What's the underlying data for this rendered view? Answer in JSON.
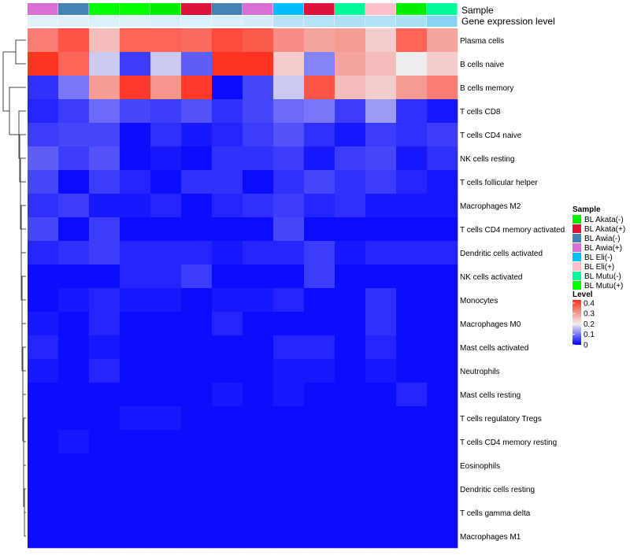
{
  "chart_data": {
    "type": "heatmap",
    "annotation_row_labels": [
      "Sample",
      "Gene expression level"
    ],
    "columns": [
      {
        "sample": "BL Awia(+)",
        "expr": 0.08
      },
      {
        "sample": "BL Awia(-)",
        "expr": 0.1
      },
      {
        "sample": "BL Mutu(+)",
        "expr": 0.12
      },
      {
        "sample": "BL Mutu(+)",
        "expr": 0.1
      },
      {
        "sample": "BL Akata(-)",
        "expr": 0.14
      },
      {
        "sample": "BL Akata(+)",
        "expr": 0.12
      },
      {
        "sample": "BL Awia(-)",
        "expr": 0.14
      },
      {
        "sample": "BL Awia(+)",
        "expr": 0.16
      },
      {
        "sample": "BL Eli(-)",
        "expr": 0.4
      },
      {
        "sample": "BL Akata(+)",
        "expr": 0.42
      },
      {
        "sample": "BL Mutu(-)",
        "expr": 0.48
      },
      {
        "sample": "BL Eli(+)",
        "expr": 0.44
      },
      {
        "sample": "BL Akata(-)",
        "expr": 0.52
      },
      {
        "sample": "BL Mutu(-)",
        "expr": 0.8
      }
    ],
    "rows": [
      "Plasma cells",
      "B cells naive",
      "B cells memory",
      "T cells CD8",
      "T cells CD4 naive",
      "NK cells resting",
      "T cells follicular helper",
      "Macrophages M2",
      "T cells CD4 memory activated",
      "Dendritic cells activated",
      "NK cells activated",
      "Monocytes",
      "Macrophages M0",
      "Mast cells activated",
      "Neutrophils",
      "Mast cells resting",
      "T cells regulatory  Tregs",
      "T cells CD4 memory resting",
      "Eosinophils",
      "Dendritic cells resting",
      "T cells gamma delta",
      "Macrophages M1"
    ],
    "values": [
      [
        0.34,
        0.39,
        0.26,
        0.37,
        0.37,
        0.36,
        0.4,
        0.38,
        0.32,
        0.29,
        0.3,
        0.24,
        0.37,
        0.29
      ],
      [
        0.43,
        0.37,
        0.17,
        0.05,
        0.17,
        0.08,
        0.43,
        0.43,
        0.24,
        0.11,
        0.29,
        0.26,
        0.2,
        0.24
      ],
      [
        0.04,
        0.1,
        0.3,
        0.42,
        0.31,
        0.42,
        0.01,
        0.06,
        0.17,
        0.39,
        0.26,
        0.24,
        0.3,
        0.34
      ],
      [
        0.03,
        0.05,
        0.09,
        0.06,
        0.05,
        0.07,
        0.04,
        0.06,
        0.09,
        0.1,
        0.05,
        0.13,
        0.04,
        0.02
      ],
      [
        0.05,
        0.06,
        0.06,
        0.01,
        0.04,
        0.02,
        0.03,
        0.05,
        0.07,
        0.04,
        0.02,
        0.05,
        0.04,
        0.05
      ],
      [
        0.08,
        0.05,
        0.07,
        0.01,
        0.02,
        0.01,
        0.04,
        0.04,
        0.05,
        0.02,
        0.05,
        0.06,
        0.02,
        0.04
      ],
      [
        0.06,
        0.01,
        0.05,
        0.03,
        0.01,
        0.04,
        0.04,
        0.01,
        0.04,
        0.06,
        0.04,
        0.05,
        0.03,
        0.02
      ],
      [
        0.04,
        0.05,
        0.02,
        0.02,
        0.03,
        0.01,
        0.03,
        0.04,
        0.05,
        0.03,
        0.04,
        0.02,
        0.02,
        0.02
      ],
      [
        0.06,
        0.01,
        0.05,
        0.01,
        0.01,
        0.01,
        0.01,
        0.01,
        0.06,
        0.01,
        0.01,
        0.01,
        0.01,
        0.01
      ],
      [
        0.03,
        0.04,
        0.05,
        0.03,
        0.03,
        0.03,
        0.02,
        0.03,
        0.03,
        0.05,
        0.02,
        0.03,
        0.03,
        0.03
      ],
      [
        0.01,
        0.01,
        0.01,
        0.03,
        0.03,
        0.05,
        0.01,
        0.01,
        0.01,
        0.05,
        0.01,
        0.01,
        0.01,
        0.01
      ],
      [
        0.01,
        0.02,
        0.03,
        0.02,
        0.02,
        0.01,
        0.02,
        0.02,
        0.03,
        0.01,
        0.01,
        0.04,
        0.01,
        0.01
      ],
      [
        0.02,
        0.01,
        0.03,
        0.01,
        0.01,
        0.01,
        0.03,
        0.01,
        0.01,
        0.01,
        0.01,
        0.04,
        0.01,
        0.01
      ],
      [
        0.03,
        0.01,
        0.02,
        0.01,
        0.01,
        0.01,
        0.01,
        0.01,
        0.03,
        0.03,
        0.01,
        0.03,
        0.01,
        0.01
      ],
      [
        0.02,
        0.01,
        0.03,
        0.01,
        0.01,
        0.01,
        0.01,
        0.01,
        0.02,
        0.02,
        0.01,
        0.02,
        0.01,
        0.01
      ],
      [
        0.01,
        0.01,
        0.01,
        0.01,
        0.01,
        0.01,
        0.02,
        0.01,
        0.02,
        0.01,
        0.01,
        0.01,
        0.03,
        0.01
      ],
      [
        0.01,
        0.01,
        0.01,
        0.02,
        0.02,
        0.01,
        0.01,
        0.01,
        0.01,
        0.01,
        0.01,
        0.01,
        0.01,
        0.01
      ],
      [
        0.01,
        0.02,
        0.01,
        0.01,
        0.01,
        0.01,
        0.01,
        0.01,
        0.01,
        0.01,
        0.01,
        0.01,
        0.01,
        0.01
      ],
      [
        0.01,
        0.01,
        0.01,
        0.01,
        0.01,
        0.01,
        0.01,
        0.01,
        0.01,
        0.01,
        0.01,
        0.01,
        0.01,
        0.01
      ],
      [
        0.01,
        0.01,
        0.01,
        0.01,
        0.01,
        0.01,
        0.01,
        0.01,
        0.01,
        0.01,
        0.01,
        0.01,
        0.01,
        0.01
      ],
      [
        0.01,
        0.01,
        0.01,
        0.01,
        0.01,
        0.01,
        0.01,
        0.01,
        0.01,
        0.01,
        0.01,
        0.01,
        0.01,
        0.01
      ],
      [
        0.01,
        0.01,
        0.01,
        0.01,
        0.01,
        0.01,
        0.01,
        0.01,
        0.01,
        0.01,
        0.01,
        0.01,
        0.01,
        0.01
      ]
    ],
    "dendrogram": [
      [
        0,
        1
      ],
      [
        2,
        3
      ],
      [
        4,
        5
      ],
      [
        6,
        7
      ],
      [
        8,
        9
      ],
      [
        10,
        11
      ],
      [
        12,
        13
      ],
      [
        14,
        15
      ],
      [
        16,
        17
      ],
      [
        18,
        19
      ],
      [
        20,
        21
      ],
      [
        22,
        23
      ],
      [
        24,
        25
      ],
      [
        26,
        27
      ],
      [
        28,
        29
      ],
      [
        30,
        31
      ],
      [
        32,
        33
      ],
      [
        34,
        35
      ],
      [
        36,
        37
      ],
      [
        38,
        39
      ],
      [
        40,
        41
      ]
    ],
    "legend_sample": {
      "title": "Sample",
      "entries": [
        {
          "label": "BL Akata(-)",
          "color": "#00EE00"
        },
        {
          "label": "BL Akata(+)",
          "color": "#DC143C"
        },
        {
          "label": "BL Awia(-)",
          "color": "#4682B4"
        },
        {
          "label": "BL Awia(+)",
          "color": "#DA70D6"
        },
        {
          "label": "BL Eli(-)",
          "color": "#00BFFF"
        },
        {
          "label": "BL Eli(+)",
          "color": "#FFC0CB"
        },
        {
          "label": "BL Mutu(-)",
          "color": "#00FA9A"
        },
        {
          "label": "BL Mutu(+)",
          "color": "#00FF00"
        }
      ]
    },
    "legend_level": {
      "title": "Level",
      "ticks": [
        "0.4",
        "0.3",
        "0.2",
        "0.1",
        "0"
      ],
      "range": [
        0,
        0.43
      ]
    },
    "color_scale": {
      "low": "#0000FF",
      "mid": "#EEEEEE",
      "high": "#FF3322",
      "mid_value": 0.2
    },
    "expr_color_scale": {
      "low": "#E8F4FB",
      "high": "#6FC9EE"
    }
  }
}
